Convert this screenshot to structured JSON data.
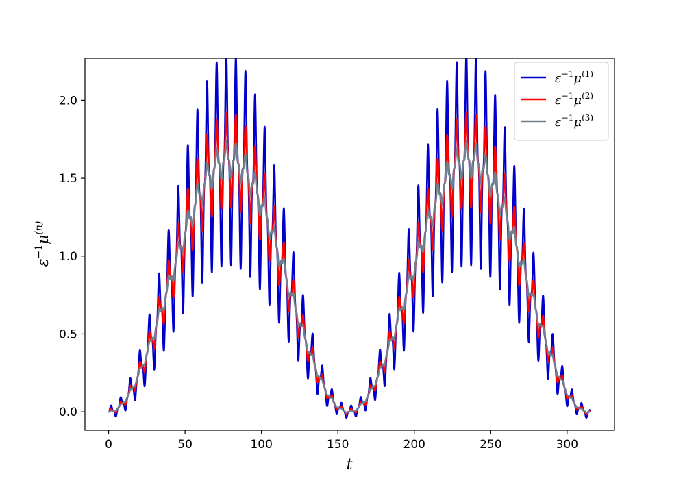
{
  "chart_data": {
    "type": "line",
    "xlabel": "t",
    "ylabel": {
      "prefix": "ε",
      "prefix_sup": "−1",
      "base": "μ",
      "sup": "(n)"
    },
    "xlim": [
      -15.5,
      331
    ],
    "ylim": [
      -0.118,
      2.27
    ],
    "xticks": [
      0,
      50,
      100,
      150,
      200,
      250,
      300
    ],
    "xtick_labels": [
      "0",
      "50",
      "100",
      "150",
      "200",
      "250",
      "300"
    ],
    "yticks": [
      0.0,
      0.5,
      1.0,
      1.5,
      2.0
    ],
    "ytick_labels": [
      "0.0",
      "0.5",
      "1.0",
      "1.5",
      "2.0"
    ],
    "t_max": 315,
    "slow_period": 157,
    "fast_period": 6.2832,
    "grid": false,
    "legend_position": "upper right",
    "series": [
      {
        "name_base": "ε",
        "name_base_sup": "−1",
        "name_mu": "μ",
        "name_sup": "(1)",
        "color": "#0000cc",
        "osc_amplitude": 0.4,
        "peak_mean": 1.62
      },
      {
        "name_base": "ε",
        "name_base_sup": "−1",
        "name_mu": "μ",
        "name_sup": "(2)",
        "color": "#ff0000",
        "osc_amplitude": 0.18,
        "peak_mean": 1.62
      },
      {
        "name_base": "ε",
        "name_base_sup": "−1",
        "name_mu": "μ",
        "name_sup": "(3)",
        "color": "#708090",
        "osc_amplitude": 0.07,
        "peak_mean": 1.62
      }
    ]
  }
}
